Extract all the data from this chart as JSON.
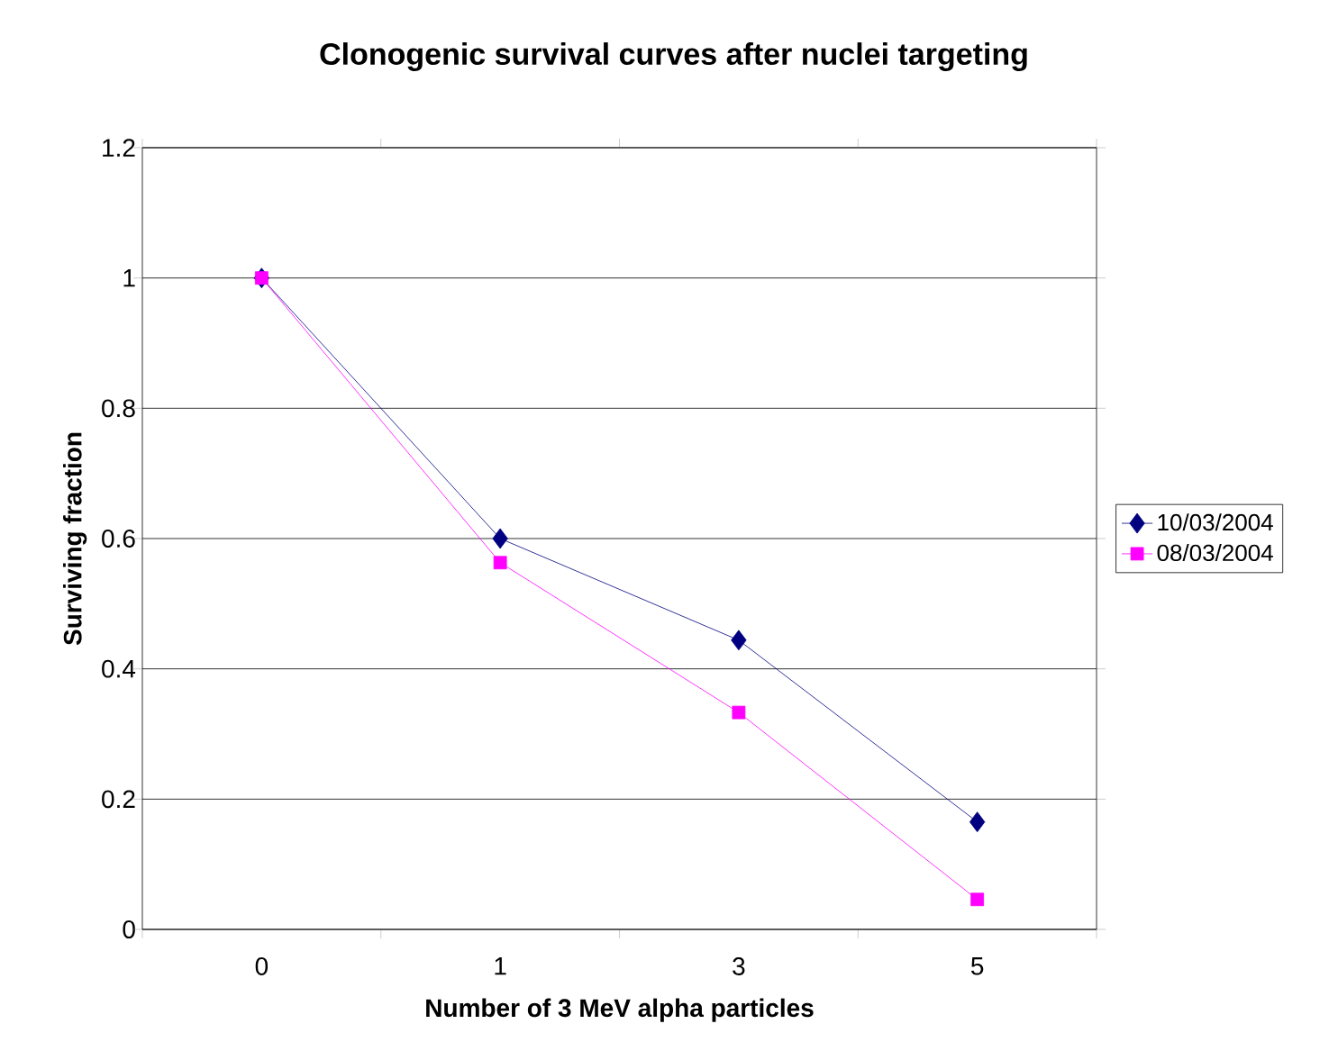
{
  "chart_data": {
    "type": "line",
    "title": "Clonogenic survival curves after nuclei targeting",
    "xlabel": "Number of 3 MeV alpha particles",
    "ylabel": "Surviving fraction",
    "categories": [
      "0",
      "1",
      "3",
      "5"
    ],
    "series": [
      {
        "name": "10/03/2004",
        "color": "#000080",
        "marker": "diamond",
        "values": [
          1,
          0.6,
          0.444,
          0.165
        ]
      },
      {
        "name": "08/03/2004",
        "color": "#ff00ff",
        "marker": "square",
        "values": [
          1,
          0.563,
          0.333,
          0.046
        ]
      }
    ],
    "ylim": [
      0,
      1.2
    ],
    "yticks": [
      0,
      0.2,
      0.4,
      0.6,
      0.8,
      1,
      1.2
    ],
    "grid": "y",
    "legend": "right",
    "line_style": "solid"
  }
}
